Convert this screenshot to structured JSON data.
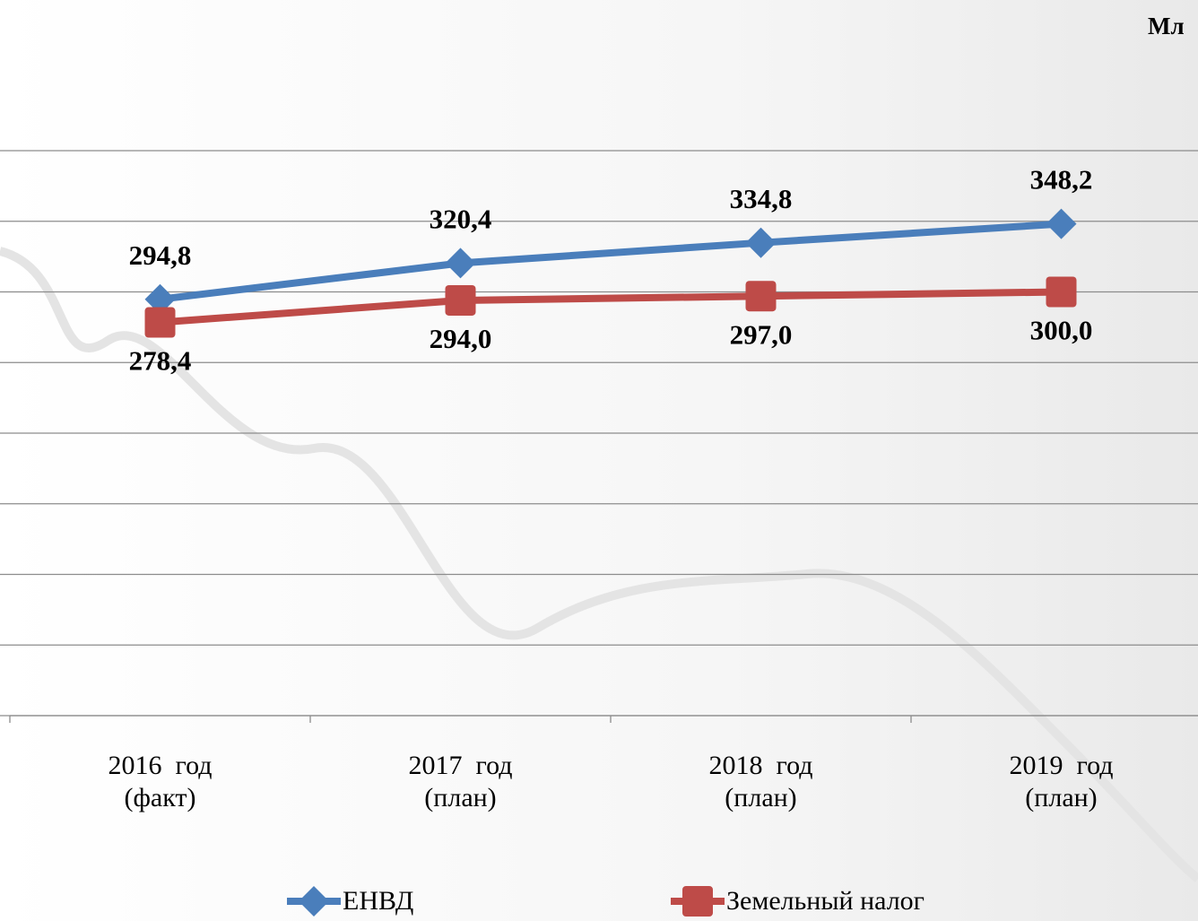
{
  "chart_data": {
    "type": "line",
    "title": "Мл",
    "categories": [
      "2016  год\n(факт)",
      "2017  год\n(план)",
      "2018  год\n(план)",
      "2019  год\n(план)"
    ],
    "series": [
      {
        "name": "ЕНВД",
        "color": "#4a7ebb",
        "values": [
          294.8,
          320.4,
          334.8,
          348.2
        ],
        "value_labels": [
          "294,8",
          "320,4",
          "334,8",
          "348,2"
        ]
      },
      {
        "name": "Земельный налог",
        "color": "#be4b48",
        "values": [
          278.4,
          294.0,
          297.0,
          300.0
        ],
        "value_labels": [
          "278,4",
          "294,0",
          "297,0",
          "300,0"
        ]
      }
    ],
    "ylim": [
      0,
      400
    ],
    "yticks": [
      0,
      50,
      100,
      150,
      200,
      250,
      300,
      350,
      400
    ],
    "grid": true
  }
}
